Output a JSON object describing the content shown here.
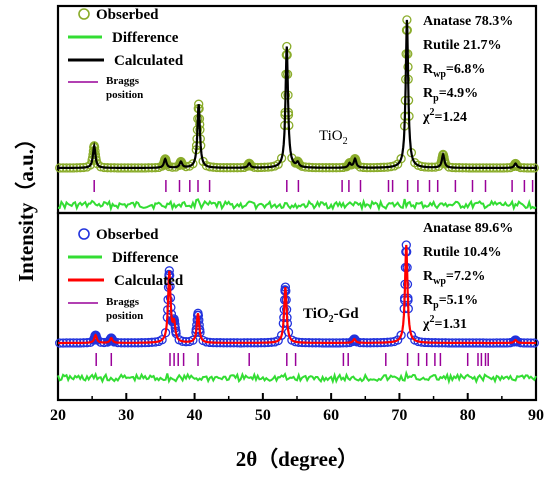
{
  "chart_data": {
    "type": "line",
    "xlabel": "2θ（degree）",
    "ylabel": "Intensity（a.u.）",
    "xlim": [
      20,
      90
    ],
    "xticks": [
      20,
      30,
      40,
      50,
      60,
      70,
      80,
      90
    ],
    "grid": false,
    "panels": [
      {
        "sample_label": "TiO",
        "sample_sub": "2",
        "sample_suffix": "",
        "legend": {
          "observed": "Obserbed",
          "difference": "Difference",
          "calculated": "Calculated",
          "braggs": [
            "Braggs",
            "position"
          ]
        },
        "colors": {
          "observed": "#8aac2a",
          "calculated": "#000000",
          "difference": "#33dd33",
          "bragg": "#990099"
        },
        "stats": {
          "anatase": "Anatase 78.3%",
          "rutile": "Rutile 21.7%",
          "rwp_prefix": "R",
          "rwp_sub": "wp",
          "rwp_value": "=6.8%",
          "rp_prefix": "R",
          "rp_sub": "p",
          "rp_value": "=4.9%",
          "chi_prefix": "χ",
          "chi_sup": "2",
          "chi_value": "=1.24"
        },
        "peaks": [
          {
            "x": 25.3,
            "h": 0.15
          },
          {
            "x": 35.7,
            "h": 0.06
          },
          {
            "x": 38.0,
            "h": 0.04
          },
          {
            "x": 40.6,
            "h": 0.43
          },
          {
            "x": 48.0,
            "h": 0.03
          },
          {
            "x": 53.5,
            "h": 0.82
          },
          {
            "x": 55.1,
            "h": 0.03
          },
          {
            "x": 62.7,
            "h": 0.03
          },
          {
            "x": 63.5,
            "h": 0.06
          },
          {
            "x": 71.1,
            "h": 1.0
          },
          {
            "x": 76.4,
            "h": 0.09
          },
          {
            "x": 87.0,
            "h": 0.03
          }
        ],
        "bragg_positions": [
          25.3,
          35.8,
          37.8,
          39.3,
          40.5,
          42.2,
          53.5,
          55.2,
          61.6,
          62.6,
          64.3,
          68.4,
          69.0,
          71.2,
          72.7,
          74.4,
          75.6,
          78.2,
          80.7,
          82.6,
          86.5,
          88.3,
          89.5
        ]
      },
      {
        "sample_label": "TiO",
        "sample_sub": "2",
        "sample_suffix": "-Gd",
        "legend": {
          "observed": "Obserbed",
          "difference": "Difference",
          "calculated": "Calculated",
          "braggs": [
            "Braggs",
            "position"
          ]
        },
        "colors": {
          "observed": "#2233dd",
          "calculated": "#ff0000",
          "difference": "#33dd33",
          "bragg": "#990099"
        },
        "stats": {
          "anatase": "Anatase 89.6%",
          "rutile": "Rutile 10.4%",
          "rwp_prefix": "R",
          "rwp_sub": "wp",
          "rwp_value": "=7.2%",
          "rp_prefix": "R",
          "rp_sub": "p",
          "rp_value": "=5.1%",
          "chi_prefix": "χ",
          "chi_sup": "2",
          "chi_value": "=1.31"
        },
        "peaks": [
          {
            "x": 25.5,
            "h": 0.08
          },
          {
            "x": 27.8,
            "h": 0.05
          },
          {
            "x": 36.3,
            "h": 0.72
          },
          {
            "x": 37.0,
            "h": 0.18
          },
          {
            "x": 40.5,
            "h": 0.3
          },
          {
            "x": 53.3,
            "h": 0.57
          },
          {
            "x": 63.4,
            "h": 0.04
          },
          {
            "x": 71.0,
            "h": 1.0
          },
          {
            "x": 87.0,
            "h": 0.03
          }
        ],
        "bragg_positions": [
          25.6,
          27.8,
          36.4,
          37.0,
          37.6,
          38.4,
          40.5,
          48.0,
          53.5,
          54.8,
          61.8,
          62.5,
          68.0,
          71.2,
          72.8,
          74.0,
          75.2,
          76.0,
          80.0,
          81.5,
          82.0,
          82.6,
          83.0
        ]
      }
    ]
  }
}
